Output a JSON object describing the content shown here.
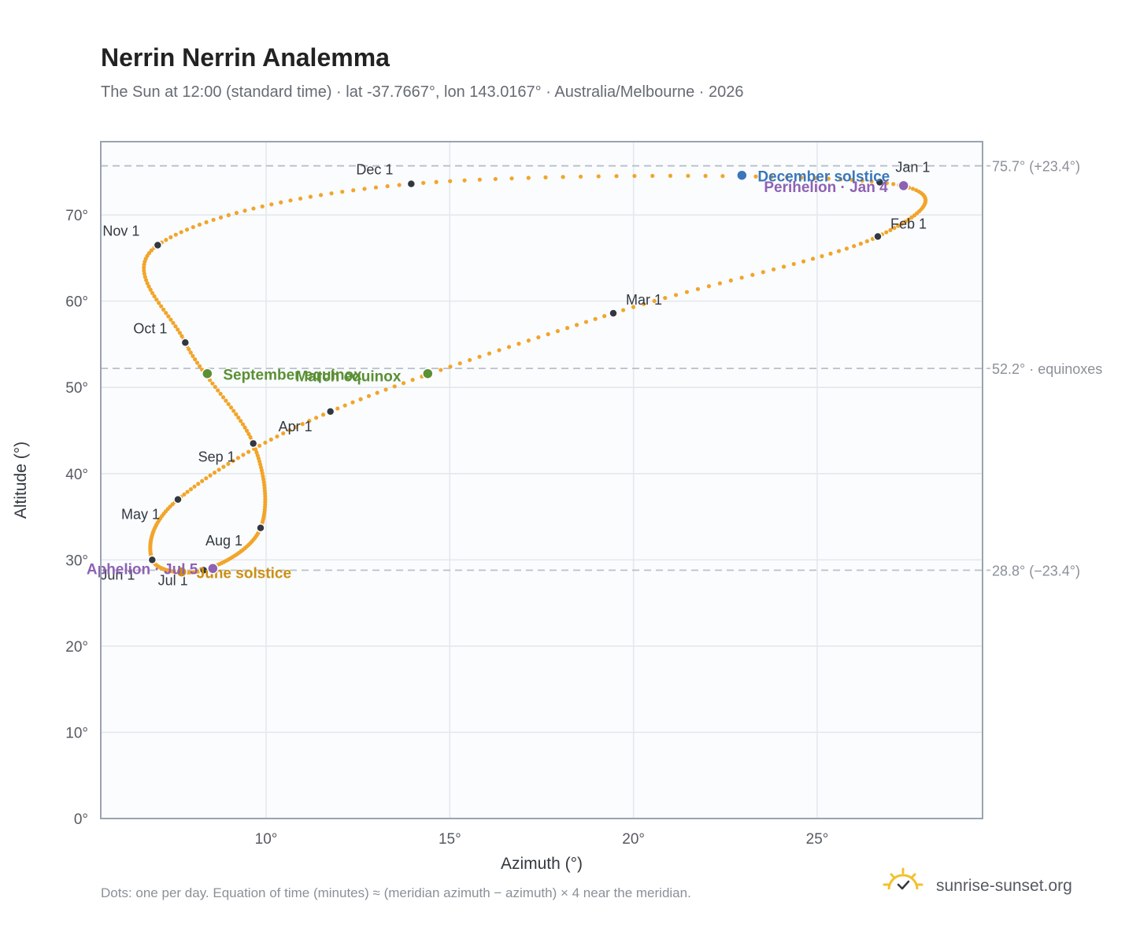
{
  "header": {
    "title": "Nerrin Nerrin Analemma",
    "subtitle": "The Sun at 12:00 (standard time) · lat -37.7667°, lon 143.0167° · Australia/Melbourne · 2026"
  },
  "footer": {
    "footnote": "Dots: one per day. Equation of time (minutes) ≈ (meridian azimuth − azimuth) × 4 near the meridian.",
    "brand": "sunrise-sunset.org",
    "brand_icon": "sun-check-icon"
  },
  "colors": {
    "curve": "#f2a52a",
    "month_marker": "#333840",
    "equinox": "#5a8f33",
    "june_solstice": "#cc8f12",
    "december_solstice": "#3a76bb",
    "apsis": "#8e62b3",
    "grid": "#e3e7ec",
    "plot_bg": "#fafcfe",
    "frame": "#9aa3b0",
    "ref_line": "#b8c0ca"
  },
  "chart_data": {
    "type": "scatter",
    "xlabel": "Azimuth (°)",
    "ylabel": "Altitude (°)",
    "xlim": [
      5.5,
      29.5
    ],
    "ylim": [
      0,
      78.5
    ],
    "x_ticks": [
      {
        "value": 10,
        "label": "10°"
      },
      {
        "value": 15,
        "label": "15°"
      },
      {
        "value": 20,
        "label": "20°"
      },
      {
        "value": 25,
        "label": "25°"
      }
    ],
    "y_ticks": [
      {
        "value": 0,
        "label": "0°"
      },
      {
        "value": 10,
        "label": "10°"
      },
      {
        "value": 20,
        "label": "20°"
      },
      {
        "value": 30,
        "label": "30°"
      },
      {
        "value": 40,
        "label": "40°"
      },
      {
        "value": 50,
        "label": "50°"
      },
      {
        "value": 60,
        "label": "60°"
      },
      {
        "value": 70,
        "label": "70°"
      }
    ],
    "grid": true,
    "reference_lines": [
      {
        "y": 75.7,
        "label": "75.7° (+23.4°)"
      },
      {
        "y": 52.2,
        "label": "52.2° · equinoxes"
      },
      {
        "y": 28.8,
        "label": "28.8° (−23.4°)"
      }
    ],
    "month_markers": [
      {
        "label": "Jan 1",
        "az": 26.7,
        "alt": 73.8
      },
      {
        "label": "Feb 1",
        "az": 26.65,
        "alt": 67.5
      },
      {
        "label": "Mar 1",
        "az": 19.45,
        "alt": 58.6
      },
      {
        "label": "Apr 1",
        "az": 11.75,
        "alt": 47.2
      },
      {
        "label": "May 1",
        "az": 7.6,
        "alt": 37.0
      },
      {
        "label": "Jun 1",
        "az": 6.9,
        "alt": 30.0
      },
      {
        "label": "Jul 1",
        "az": 8.3,
        "alt": 28.8
      },
      {
        "label": "Aug 1",
        "az": 9.85,
        "alt": 33.7
      },
      {
        "label": "Sep 1",
        "az": 9.65,
        "alt": 43.5
      },
      {
        "label": "Oct 1",
        "az": 7.8,
        "alt": 55.2
      },
      {
        "label": "Nov 1",
        "az": 7.05,
        "alt": 66.5
      },
      {
        "label": "Dec 1",
        "az": 13.95,
        "alt": 73.6
      }
    ],
    "events": [
      {
        "label": "March equinox",
        "az": 14.4,
        "alt": 51.6,
        "kind": "equinox"
      },
      {
        "label": "September equinox",
        "az": 8.4,
        "alt": 51.6,
        "kind": "equinox"
      },
      {
        "label": "June solstice",
        "az": 7.7,
        "alt": 28.6,
        "kind": "june_solstice"
      },
      {
        "label": "December solstice",
        "az": 22.95,
        "alt": 74.6,
        "kind": "december_solstice"
      },
      {
        "label": "Perihelion · Jan 4",
        "az": 27.35,
        "alt": 73.4,
        "kind": "apsis"
      },
      {
        "label": "Aphelion · Jul 5",
        "az": 8.55,
        "alt": 29.0,
        "kind": "apsis"
      }
    ]
  }
}
